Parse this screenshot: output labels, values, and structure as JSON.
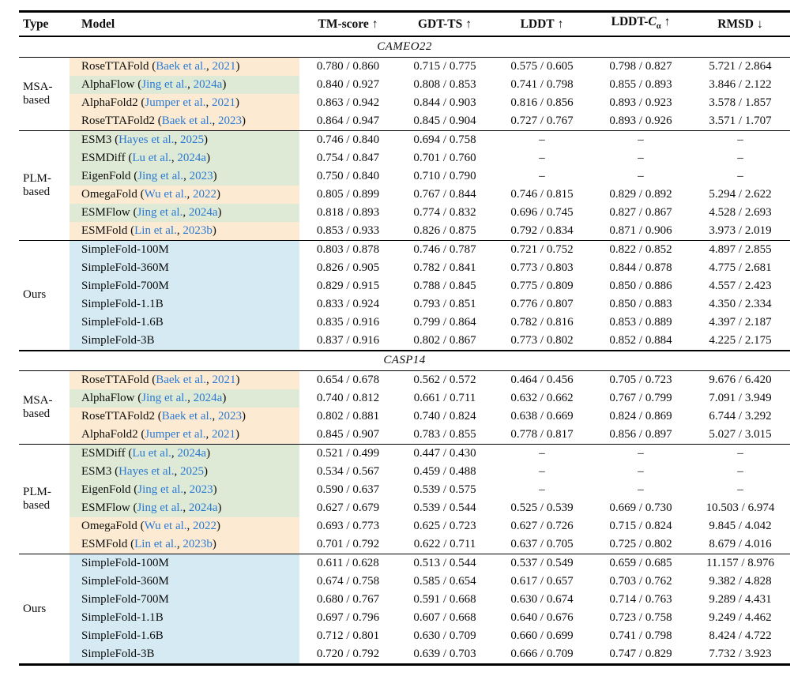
{
  "colors": {
    "peach_highlight": "#fcebd2",
    "green_highlight": "#dee9d6",
    "blue_highlight": "#d5eaf2",
    "citation_link": "#2a7ad4"
  },
  "table": {
    "headers": [
      {
        "key": "type",
        "text": "Type"
      },
      {
        "key": "model",
        "text": "Model"
      },
      {
        "key": "tmscore",
        "text": "TM-score",
        "arrow": "↑"
      },
      {
        "key": "gdtts",
        "text": "GDT-TS",
        "arrow": "↑"
      },
      {
        "key": "lddt",
        "text": "LDDT",
        "arrow": "↑"
      },
      {
        "key": "lddtca",
        "text": "LDDT-",
        "math": "C",
        "sub": "α",
        "arrow": "↑"
      },
      {
        "key": "rmsd",
        "text": "RMSD",
        "arrow": "↓"
      }
    ],
    "sections": [
      {
        "label": "CAMEO22",
        "groups": [
          {
            "type": "MSA-based",
            "rows": [
              {
                "model": "RoseTTAFold",
                "cite_author": "Baek et al.",
                "cite_year": "2021",
                "bg": "peach",
                "values": [
                  "0.780 / 0.860",
                  "0.715 / 0.775",
                  "0.575 / 0.605",
                  "0.798 / 0.827",
                  "5.721 / 2.864"
                ]
              },
              {
                "model": "AlphaFlow",
                "cite_author": "Jing et al.",
                "cite_year": "2024a",
                "bg": "green",
                "values": [
                  "0.840 / 0.927",
                  "0.808 / 0.853",
                  "0.741 / 0.798",
                  "0.855 / 0.893",
                  "3.846 / 2.122"
                ]
              },
              {
                "model": "AlphaFold2",
                "cite_author": "Jumper et al.",
                "cite_year": "2021",
                "bg": "peach",
                "values": [
                  "0.863 / 0.942",
                  "0.844 / 0.903",
                  "0.816 / 0.856",
                  "0.893 / 0.923",
                  "3.578 / 1.857"
                ]
              },
              {
                "model": "RoseTTAFold2",
                "cite_author": "Baek et al.",
                "cite_year": "2023",
                "bg": "peach",
                "values": [
                  "0.864 / 0.947",
                  "0.845 / 0.904",
                  "0.727 / 0.767",
                  "0.893 / 0.926",
                  "3.571 / 1.707"
                ]
              }
            ]
          },
          {
            "type": "PLM-based",
            "rows": [
              {
                "model": "ESM3",
                "cite_author": "Hayes et al.",
                "cite_year": "2025",
                "bg": "green",
                "values": [
                  "0.746 / 0.840",
                  "0.694 / 0.758",
                  "–",
                  "–",
                  "–"
                ]
              },
              {
                "model": "ESMDiff",
                "cite_author": "Lu et al.",
                "cite_year": "2024a",
                "bg": "green",
                "values": [
                  "0.754 / 0.847",
                  "0.701 / 0.760",
                  "–",
                  "–",
                  "–"
                ]
              },
              {
                "model": "EigenFold",
                "cite_author": "Jing et al.",
                "cite_year": "2023",
                "bg": "green",
                "values": [
                  "0.750 / 0.840",
                  "0.710 / 0.790",
                  "–",
                  "–",
                  "–"
                ]
              },
              {
                "model": "OmegaFold",
                "cite_author": "Wu et al.",
                "cite_year": "2022",
                "bg": "peach",
                "values": [
                  "0.805 / 0.899",
                  "0.767 / 0.844",
                  "0.746 / 0.815",
                  "0.829 / 0.892",
                  "5.294 / 2.622"
                ]
              },
              {
                "model": "ESMFlow",
                "cite_author": "Jing et al.",
                "cite_year": "2024a",
                "bg": "green",
                "values": [
                  "0.818 / 0.893",
                  "0.774 / 0.832",
                  "0.696 / 0.745",
                  "0.827 / 0.867",
                  "4.528 / 2.693"
                ]
              },
              {
                "model": "ESMFold",
                "cite_author": "Lin et al.",
                "cite_year": "2023b",
                "bg": "peach",
                "values": [
                  "0.853 / 0.933",
                  "0.826 / 0.875",
                  "0.792 / 0.834",
                  "0.871 / 0.906",
                  "3.973 / 2.019"
                ]
              }
            ]
          },
          {
            "type": "Ours",
            "rows": [
              {
                "model": "SimpleFold-100M",
                "bg": "blue",
                "values": [
                  "0.803 / 0.878",
                  "0.746 / 0.787",
                  "0.721 / 0.752",
                  "0.822 / 0.852",
                  "4.897 / 2.855"
                ]
              },
              {
                "model": "SimpleFold-360M",
                "bg": "blue",
                "values": [
                  "0.826 / 0.905",
                  "0.782 / 0.841",
                  "0.773 / 0.803",
                  "0.844 / 0.878",
                  "4.775 / 2.681"
                ]
              },
              {
                "model": "SimpleFold-700M",
                "bg": "blue",
                "values": [
                  "0.829 / 0.915",
                  "0.788 / 0.845",
                  "0.775 / 0.809",
                  "0.850 / 0.886",
                  "4.557 / 2.423"
                ]
              },
              {
                "model": "SimpleFold-1.1B",
                "bg": "blue",
                "values": [
                  "0.833 / 0.924",
                  "0.793 / 0.851",
                  "0.776 / 0.807",
                  "0.850 / 0.883",
                  "4.350 / 2.334"
                ]
              },
              {
                "model": "SimpleFold-1.6B",
                "bg": "blue",
                "values": [
                  "0.835 / 0.916",
                  "0.799 / 0.864",
                  "0.782 / 0.816",
                  "0.853 / 0.889",
                  "4.397 / 2.187"
                ]
              },
              {
                "model": "SimpleFold-3B",
                "bg": "blue",
                "values": [
                  "0.837 / 0.916",
                  "0.802 / 0.867",
                  "0.773 / 0.802",
                  "0.852 / 0.884",
                  "4.225 / 2.175"
                ]
              }
            ]
          }
        ]
      },
      {
        "label": "CASP14",
        "groups": [
          {
            "type": "MSA-based",
            "rows": [
              {
                "model": "RoseTTAFold",
                "cite_author": "Baek et al.",
                "cite_year": "2021",
                "bg": "peach",
                "values": [
                  "0.654 / 0.678",
                  "0.562 / 0.572",
                  "0.464 / 0.456",
                  "0.705 / 0.723",
                  "9.676 / 6.420"
                ]
              },
              {
                "model": "AlphaFlow",
                "cite_author": "Jing et al.",
                "cite_year": "2024a",
                "bg": "green",
                "values": [
                  "0.740 / 0.812",
                  "0.661 / 0.711",
                  "0.632 / 0.662",
                  "0.767 / 0.799",
                  "7.091 / 3.949"
                ]
              },
              {
                "model": "RoseTTAFold2",
                "cite_author": "Baek et al.",
                "cite_year": "2023",
                "bg": "peach",
                "values": [
                  "0.802 / 0.881",
                  "0.740 / 0.824",
                  "0.638 / 0.669",
                  "0.824 / 0.869",
                  "6.744 / 3.292"
                ]
              },
              {
                "model": "AlphaFold2",
                "cite_author": "Jumper et al.",
                "cite_year": "2021",
                "bg": "peach",
                "values": [
                  "0.845 / 0.907",
                  "0.783 / 0.855",
                  "0.778 / 0.817",
                  "0.856 / 0.897",
                  "5.027 / 3.015"
                ]
              }
            ]
          },
          {
            "type": "PLM-based",
            "rows": [
              {
                "model": "ESMDiff",
                "cite_author": "Lu et al.",
                "cite_year": "2024a",
                "bg": "green",
                "values": [
                  "0.521 / 0.499",
                  "0.447 / 0.430",
                  "–",
                  "–",
                  "–"
                ]
              },
              {
                "model": "ESM3",
                "cite_author": "Hayes et al.",
                "cite_year": "2025",
                "bg": "green",
                "values": [
                  "0.534 / 0.567",
                  "0.459 / 0.488",
                  "–",
                  "–",
                  "–"
                ]
              },
              {
                "model": "EigenFold",
                "cite_author": "Jing et al.",
                "cite_year": "2023",
                "bg": "green",
                "values": [
                  "0.590 / 0.637",
                  "0.539 / 0.575",
                  "–",
                  "–",
                  "–"
                ]
              },
              {
                "model": "ESMFlow",
                "cite_author": "Jing et al.",
                "cite_year": "2024a",
                "bg": "green",
                "values": [
                  "0.627 / 0.679",
                  "0.539 / 0.544",
                  "0.525 / 0.539",
                  "0.669 / 0.730",
                  "10.503 / 6.974"
                ]
              },
              {
                "model": "OmegaFold",
                "cite_author": "Wu et al.",
                "cite_year": "2022",
                "bg": "peach",
                "values": [
                  "0.693 / 0.773",
                  "0.625 / 0.723",
                  "0.627 / 0.726",
                  "0.715 / 0.824",
                  "9.845 / 4.042"
                ]
              },
              {
                "model": "ESMFold",
                "cite_author": "Lin et al.",
                "cite_year": "2023b",
                "bg": "peach",
                "values": [
                  "0.701 / 0.792",
                  "0.622 / 0.711",
                  "0.637 / 0.705",
                  "0.725 / 0.802",
                  "8.679 / 4.016"
                ]
              }
            ]
          },
          {
            "type": "Ours",
            "rows": [
              {
                "model": "SimpleFold-100M",
                "bg": "blue",
                "values": [
                  "0.611 / 0.628",
                  "0.513 / 0.544",
                  "0.537 / 0.549",
                  "0.659 / 0.685",
                  "11.157 / 8.976"
                ]
              },
              {
                "model": "SimpleFold-360M",
                "bg": "blue",
                "values": [
                  "0.674 / 0.758",
                  "0.585 / 0.654",
                  "0.617 / 0.657",
                  "0.703 / 0.762",
                  "9.382 / 4.828"
                ]
              },
              {
                "model": "SimpleFold-700M",
                "bg": "blue",
                "values": [
                  "0.680 / 0.767",
                  "0.591 / 0.668",
                  "0.630 / 0.674",
                  "0.714 / 0.763",
                  "9.289 / 4.431"
                ]
              },
              {
                "model": "SimpleFold-1.1B",
                "bg": "blue",
                "values": [
                  "0.697 / 0.796",
                  "0.607 / 0.668",
                  "0.640 / 0.676",
                  "0.723 / 0.758",
                  "9.249 / 4.462"
                ]
              },
              {
                "model": "SimpleFold-1.6B",
                "bg": "blue",
                "values": [
                  "0.712 / 0.801",
                  "0.630 / 0.709",
                  "0.660 / 0.699",
                  "0.741 / 0.798",
                  "8.424 / 4.722"
                ]
              },
              {
                "model": "SimpleFold-3B",
                "bg": "blue",
                "values": [
                  "0.720 / 0.792",
                  "0.639 / 0.703",
                  "0.666 / 0.709",
                  "0.747 / 0.829",
                  "7.732 / 3.923"
                ]
              }
            ]
          }
        ]
      }
    ]
  }
}
